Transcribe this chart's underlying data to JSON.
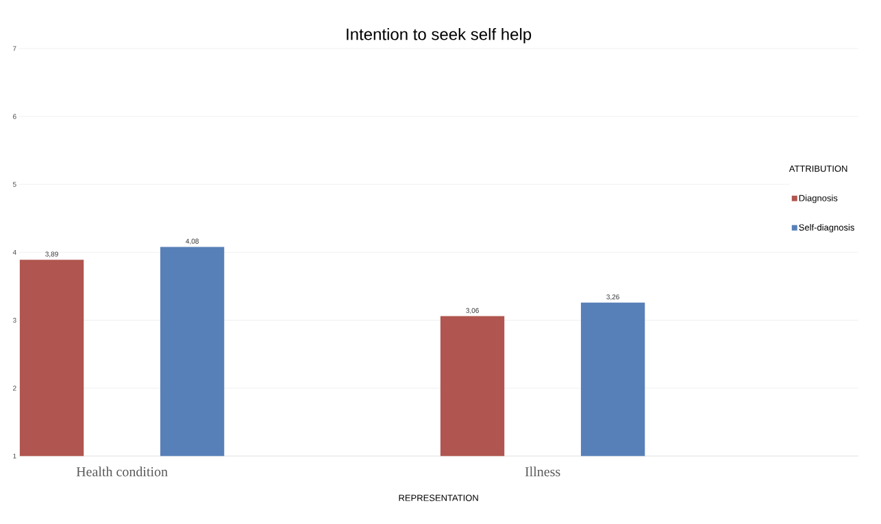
{
  "chart_data": {
    "type": "bar",
    "title": "Intention to seek self help",
    "xlabel": "REPRESENTATION",
    "legend_title": "ATTRIBUTION",
    "categories": [
      "Health condition",
      "Illness"
    ],
    "series": [
      {
        "name": "Diagnosis",
        "color": "#b0554f",
        "values": [
          3.89,
          3.06
        ],
        "value_labels": [
          "3,89",
          "3,06"
        ]
      },
      {
        "name": "Self-diagnosis",
        "color": "#5880b8",
        "values": [
          4.08,
          3.26
        ],
        "value_labels": [
          "4,08",
          "3,26"
        ]
      }
    ],
    "ylim": [
      1,
      7
    ],
    "yticks": [
      1,
      2,
      3,
      4,
      5,
      6,
      7
    ],
    "grid": "y",
    "legend": "right"
  }
}
